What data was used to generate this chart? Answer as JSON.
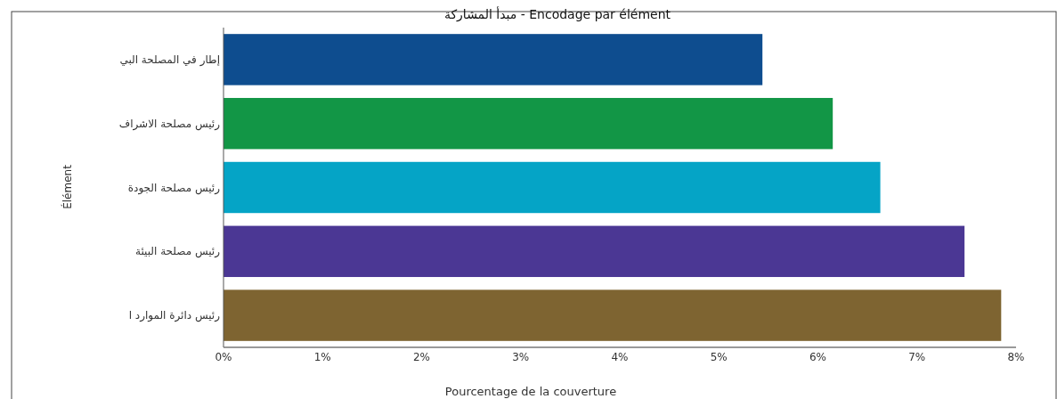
{
  "chart_data": {
    "type": "bar",
    "orientation": "horizontal",
    "title": "مبدأ المشاركة - Encodage par élément",
    "xlabel": "Pourcentage de la couverture",
    "ylabel": "Élément",
    "categories": [
      "إطار في المصلحة البي",
      "رئيس مصلحة الاشراف",
      "رئيس مصلحة الجودة",
      "رئيس مصلحة البيئة",
      "رئيس دائرة الموارد ا"
    ],
    "values": [
      5.44,
      6.15,
      6.63,
      7.48,
      7.85
    ],
    "colors": [
      "#0e4d8f",
      "#129646",
      "#05a4c6",
      "#4b3794",
      "#7e6431"
    ],
    "xlim": [
      0,
      8
    ],
    "xticks": [
      {
        "value": 0,
        "label": "0%"
      },
      {
        "value": 1,
        "label": "1%"
      },
      {
        "value": 2,
        "label": "2%"
      },
      {
        "value": 3,
        "label": "3%"
      },
      {
        "value": 4,
        "label": "4%"
      },
      {
        "value": 5,
        "label": "5%"
      },
      {
        "value": 6,
        "label": "6%"
      },
      {
        "value": 7,
        "label": "7%"
      },
      {
        "value": 8,
        "label": "8%"
      }
    ],
    "grid": false
  }
}
